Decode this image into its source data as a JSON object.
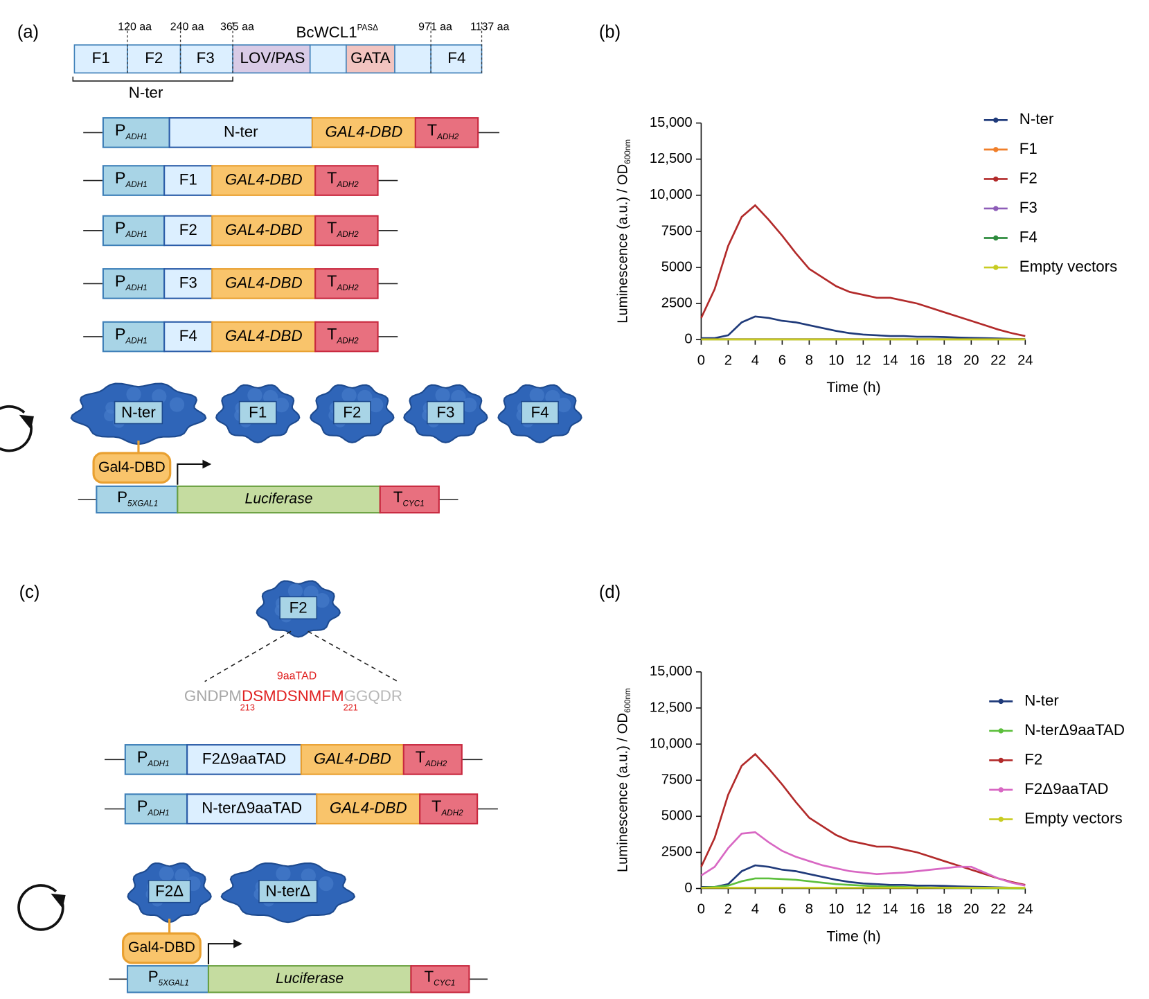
{
  "panels": [
    "(a)",
    "(b)",
    "(c)",
    "(d)"
  ],
  "domain_map": {
    "title": "BcWCL1",
    "title_sup": "PASΔ",
    "positions": [
      "120 aa",
      "240 aa",
      "365 aa",
      "971 aa",
      "1137 aa"
    ],
    "segments": [
      "F1",
      "F2",
      "F3",
      "LOV/PAS",
      "GATA",
      "F4"
    ],
    "bracket": "N-ter"
  },
  "constructs_a": [
    {
      "promoter": "P",
      "promoter_sub": "ADH1",
      "insert": "N-ter",
      "dbd": "GAL4-DBD",
      "terminator": "T",
      "terminator_sub": "ADH2"
    },
    {
      "promoter": "P",
      "promoter_sub": "ADH1",
      "insert": "F1",
      "dbd": "GAL4-DBD",
      "terminator": "T",
      "terminator_sub": "ADH2"
    },
    {
      "promoter": "P",
      "promoter_sub": "ADH1",
      "insert": "F2",
      "dbd": "GAL4-DBD",
      "terminator": "T",
      "terminator_sub": "ADH2"
    },
    {
      "promoter": "P",
      "promoter_sub": "ADH1",
      "insert": "F3",
      "dbd": "GAL4-DBD",
      "terminator": "T",
      "terminator_sub": "ADH2"
    },
    {
      "promoter": "P",
      "promoter_sub": "ADH1",
      "insert": "F4",
      "dbd": "GAL4-DBD",
      "terminator": "T",
      "terminator_sub": "ADH2"
    }
  ],
  "proteins_a": [
    "N-ter",
    "F1",
    "F2",
    "F3",
    "F4"
  ],
  "reporter_a": {
    "gal4": "Gal4-DBD",
    "promoter": "P",
    "promoter_sub": "5XGAL1",
    "gene": "Luciferase",
    "terminator": "T",
    "terminator_sub": "CYC1"
  },
  "panel_c": {
    "protein": "F2",
    "tad": "9aaTAD",
    "sequence": [
      "GNDPM",
      "DSMDSNMFM",
      "GGQDR"
    ],
    "positions": [
      "213",
      "221"
    ]
  },
  "constructs_c": [
    {
      "promoter": "P",
      "promoter_sub": "ADH1",
      "insert": "F2Δ9aaTAD",
      "dbd": "GAL4-DBD",
      "terminator": "T",
      "terminator_sub": "ADH2"
    },
    {
      "promoter": "P",
      "promoter_sub": "ADH1",
      "insert": "N-terΔ9aaTAD",
      "dbd": "GAL4-DBD",
      "terminator": "T",
      "terminator_sub": "ADH2"
    }
  ],
  "proteins_c": [
    "F2Δ",
    "N-terΔ"
  ],
  "reporter_c": {
    "gal4": "Gal4-DBD",
    "promoter": "P",
    "promoter_sub": "5XGAL1",
    "gene": "Luciferase",
    "terminator": "T",
    "terminator_sub": "CYC1"
  },
  "chart_data": [
    {
      "type": "line",
      "xlabel": "Time (h)",
      "ylabel": "Luminescence (a.u.) / OD",
      "ylabel_sub": "600nm",
      "x": [
        0,
        1,
        2,
        3,
        4,
        5,
        6,
        7,
        8,
        9,
        10,
        11,
        12,
        13,
        14,
        15,
        16,
        17,
        18,
        19,
        20,
        21,
        22,
        23,
        24
      ],
      "xlim": [
        0,
        24
      ],
      "xticks": [
        0,
        2,
        4,
        6,
        8,
        10,
        12,
        14,
        16,
        18,
        20,
        22,
        24
      ],
      "ylim": [
        0,
        15000
      ],
      "yticks": [
        0,
        2500,
        5000,
        7500,
        {
          "value": 10000,
          "label": "10,000"
        },
        {
          "value": 12500,
          "label": "12,500"
        },
        {
          "value": 15000,
          "label": "15,000"
        }
      ],
      "grid": false,
      "legend": "right",
      "series": [
        {
          "name": "N-ter",
          "color": "#1f3a7a",
          "values": [
            100,
            100,
            300,
            1200,
            1600,
            1500,
            1300,
            1200,
            1000,
            800,
            600,
            450,
            350,
            300,
            250,
            250,
            200,
            200,
            180,
            150,
            120,
            100,
            80,
            50,
            30
          ]
        },
        {
          "name": "F1",
          "color": "#f07f2a",
          "values": [
            30,
            30,
            30,
            30,
            30,
            30,
            30,
            30,
            30,
            30,
            30,
            30,
            30,
            30,
            30,
            30,
            30,
            30,
            30,
            30,
            30,
            30,
            30,
            30,
            30
          ]
        },
        {
          "name": "F2",
          "color": "#b22a2a",
          "values": [
            1500,
            3500,
            6500,
            8500,
            9300,
            8300,
            7200,
            6000,
            4900,
            4300,
            3700,
            3300,
            3100,
            2900,
            2900,
            2700,
            2500,
            2200,
            1900,
            1600,
            1300,
            1000,
            700,
            450,
            250
          ]
        },
        {
          "name": "F3",
          "color": "#8e5db8",
          "values": [
            20,
            20,
            20,
            20,
            20,
            20,
            20,
            20,
            20,
            20,
            20,
            20,
            20,
            20,
            20,
            20,
            20,
            20,
            20,
            20,
            20,
            20,
            20,
            20,
            20
          ]
        },
        {
          "name": "F4",
          "color": "#2e8b3e",
          "values": [
            20,
            20,
            20,
            20,
            20,
            20,
            20,
            20,
            20,
            20,
            20,
            20,
            20,
            20,
            20,
            20,
            20,
            20,
            20,
            20,
            20,
            20,
            20,
            20,
            20
          ]
        },
        {
          "name": "Empty vectors",
          "color": "#c8cc22",
          "values": [
            10,
            10,
            10,
            10,
            10,
            10,
            10,
            10,
            10,
            10,
            10,
            10,
            10,
            10,
            10,
            10,
            10,
            10,
            10,
            10,
            10,
            10,
            10,
            10,
            10
          ]
        }
      ]
    },
    {
      "type": "line",
      "xlabel": "Time (h)",
      "ylabel": "Luminescence (a.u.) / OD",
      "ylabel_sub": "600nm",
      "x": [
        0,
        1,
        2,
        3,
        4,
        5,
        6,
        7,
        8,
        9,
        10,
        11,
        12,
        13,
        14,
        15,
        16,
        17,
        18,
        19,
        20,
        21,
        22,
        23,
        24
      ],
      "xlim": [
        0,
        24
      ],
      "xticks": [
        0,
        2,
        4,
        6,
        8,
        10,
        12,
        14,
        16,
        18,
        20,
        22,
        24
      ],
      "ylim": [
        0,
        15000
      ],
      "yticks": [
        0,
        2500,
        5000,
        7500,
        {
          "value": 10000,
          "label": "10,000"
        },
        {
          "value": 12500,
          "label": "12,500"
        },
        {
          "value": 15000,
          "label": "15,000"
        }
      ],
      "grid": false,
      "legend": "right",
      "series": [
        {
          "name": "N-ter",
          "color": "#1f3a7a",
          "values": [
            100,
            100,
            300,
            1200,
            1600,
            1500,
            1300,
            1200,
            1000,
            800,
            600,
            450,
            350,
            300,
            250,
            250,
            200,
            200,
            180,
            150,
            120,
            100,
            80,
            50,
            30
          ]
        },
        {
          "name": "N-terΔ9aaTAD",
          "color": "#5cbf3c",
          "values": [
            50,
            100,
            200,
            500,
            700,
            700,
            650,
            600,
            500,
            400,
            300,
            250,
            200,
            150,
            120,
            100,
            80,
            60,
            50,
            40,
            30,
            20,
            15,
            10,
            5
          ]
        },
        {
          "name": "F2",
          "color": "#b22a2a",
          "values": [
            1500,
            3500,
            6500,
            8500,
            9300,
            8300,
            7200,
            6000,
            4900,
            4300,
            3700,
            3300,
            3100,
            2900,
            2900,
            2700,
            2500,
            2200,
            1900,
            1600,
            1300,
            1000,
            700,
            450,
            250
          ]
        },
        {
          "name": "F2Δ9aaTAD",
          "color": "#d867c3",
          "values": [
            900,
            1500,
            2800,
            3800,
            3900,
            3200,
            2600,
            2200,
            1900,
            1600,
            1400,
            1200,
            1100,
            1000,
            1050,
            1100,
            1200,
            1300,
            1400,
            1500,
            1500,
            1100,
            700,
            400,
            200
          ]
        },
        {
          "name": "Empty vectors",
          "color": "#c8cc22",
          "values": [
            50,
            50,
            50,
            50,
            50,
            50,
            50,
            50,
            50,
            50,
            50,
            50,
            50,
            50,
            50,
            50,
            50,
            50,
            50,
            50,
            50,
            50,
            50,
            50,
            50
          ]
        }
      ]
    }
  ]
}
